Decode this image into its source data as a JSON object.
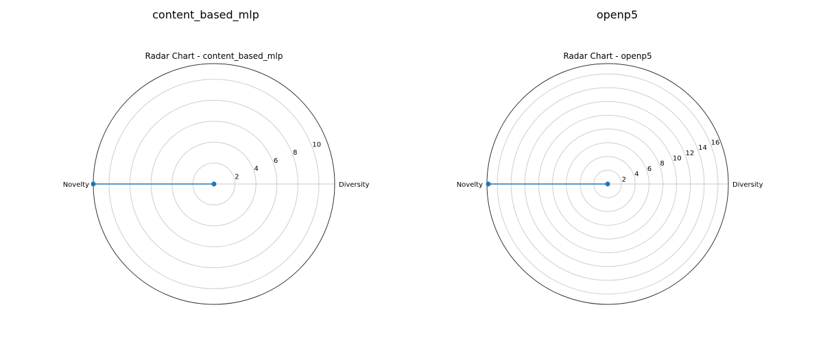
{
  "colors": {
    "series": "#1f77b4",
    "grid": "#c8c8c8",
    "frame": "#333333",
    "text": "#000000"
  },
  "chart_data": [
    {
      "type": "radar",
      "suptitle": "content_based_mlp",
      "title": "Radar Chart - content_based_mlp",
      "axes": [
        "Diversity",
        "Novelty"
      ],
      "angles_deg": [
        0,
        180
      ],
      "values": [
        0.0,
        11.5
      ],
      "rmax": 11.5,
      "rticks": [
        2,
        4,
        6,
        8,
        10
      ],
      "rticklabels": [
        "2",
        "4",
        "6",
        "8",
        "10"
      ],
      "grid": true
    },
    {
      "type": "radar",
      "suptitle": "openp5",
      "title": "Radar Chart - openp5",
      "axes": [
        "Diversity",
        "Novelty"
      ],
      "angles_deg": [
        0,
        180
      ],
      "values": [
        0.0,
        17.3
      ],
      "rmax": 17.5,
      "rticks": [
        2,
        4,
        6,
        8,
        10,
        12,
        14,
        16
      ],
      "rticklabels": [
        "2",
        "4",
        "6",
        "8",
        "10",
        "12",
        "14",
        "16"
      ],
      "grid": true
    }
  ]
}
